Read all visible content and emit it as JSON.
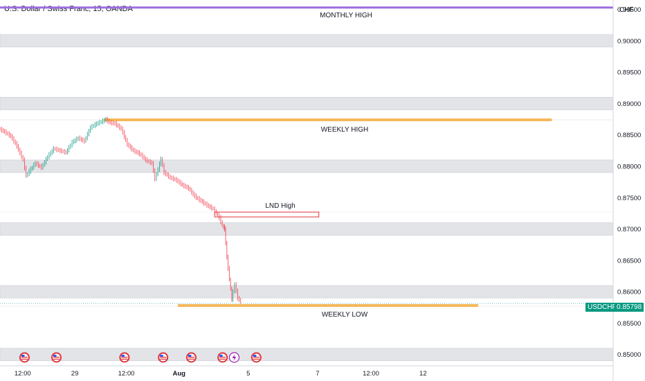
{
  "header": {
    "title": "U.S. Dollar / Swiss Franc, 15, OANDA",
    "currency": "CHF"
  },
  "last_price": {
    "symbol": "USDCHF",
    "value": "0.85798"
  },
  "colors": {
    "monthly_line": "#9c6ce0",
    "weekly_zone": "#f5b85a",
    "lnd_box": "#e0333b",
    "band": "#e3e4e8",
    "up_candle": "#089981",
    "down_candle": "#f23645",
    "last_price": "#089981"
  },
  "chart_data": {
    "type": "line",
    "symbol": "USDCHF",
    "x_tick_labels": [
      "12:00",
      "29",
      "12:00",
      "Aug",
      "5",
      "7",
      "12:00",
      "12"
    ],
    "y_tick_labels": [
      "0.90500",
      "0.90000",
      "0.89500",
      "0.89000",
      "0.88500",
      "0.88000",
      "0.87500",
      "0.87000",
      "0.86500",
      "0.86000",
      "0.85500",
      "0.85000"
    ],
    "ylim": [
      0.8482,
      0.9065
    ],
    "price_path": [
      [
        0.0,
        0.886
      ],
      [
        0.01,
        0.8855
      ],
      [
        0.02,
        0.8848
      ],
      [
        0.03,
        0.8832
      ],
      [
        0.04,
        0.881
      ],
      [
        0.045,
        0.8785
      ],
      [
        0.05,
        0.8792
      ],
      [
        0.06,
        0.8805
      ],
      [
        0.07,
        0.8798
      ],
      [
        0.08,
        0.8815
      ],
      [
        0.09,
        0.8828
      ],
      [
        0.1,
        0.8825
      ],
      [
        0.11,
        0.8822
      ],
      [
        0.12,
        0.8838
      ],
      [
        0.13,
        0.8845
      ],
      [
        0.14,
        0.884
      ],
      [
        0.15,
        0.8862
      ],
      [
        0.16,
        0.8868
      ],
      [
        0.17,
        0.8872
      ],
      [
        0.175,
        0.8875
      ],
      [
        0.18,
        0.887
      ],
      [
        0.19,
        0.8868
      ],
      [
        0.2,
        0.886
      ],
      [
        0.21,
        0.8835
      ],
      [
        0.22,
        0.8825
      ],
      [
        0.23,
        0.882
      ],
      [
        0.24,
        0.881
      ],
      [
        0.25,
        0.8805
      ],
      [
        0.255,
        0.878
      ],
      [
        0.26,
        0.8795
      ],
      [
        0.265,
        0.8812
      ],
      [
        0.27,
        0.879
      ],
      [
        0.28,
        0.8782
      ],
      [
        0.29,
        0.8778
      ],
      [
        0.3,
        0.877
      ],
      [
        0.31,
        0.8765
      ],
      [
        0.32,
        0.8752
      ],
      [
        0.33,
        0.8745
      ],
      [
        0.34,
        0.8738
      ],
      [
        0.35,
        0.8732
      ],
      [
        0.355,
        0.8725
      ],
      [
        0.36,
        0.8718
      ],
      [
        0.365,
        0.8705
      ],
      [
        0.368,
        0.87
      ],
      [
        0.372,
        0.8655
      ],
      [
        0.376,
        0.862
      ],
      [
        0.38,
        0.8588
      ],
      [
        0.385,
        0.8612
      ],
      [
        0.39,
        0.859
      ],
      [
        0.395,
        0.8584
      ]
    ],
    "levels": [
      {
        "label": "MONTHLY HIGH",
        "price": 0.9053
      },
      {
        "label": "WEEKLY HIGH",
        "price": 0.8874,
        "from": 0.17,
        "to": 0.9
      },
      {
        "label": "WEEKLY LOW",
        "price": 0.8578,
        "from": 0.29,
        "to": 0.78
      },
      {
        "label": "LND High",
        "price": 0.8727,
        "from": 0.35,
        "to": 0.52
      }
    ],
    "zones": [
      [
        0.899,
        0.901
      ],
      [
        0.889,
        0.891
      ],
      [
        0.879,
        0.881
      ],
      [
        0.869,
        0.871
      ],
      [
        0.859,
        0.861
      ],
      [
        0.849,
        0.851
      ]
    ],
    "events": [
      {
        "x": 0.04,
        "kind": "us-flag"
      },
      {
        "x": 0.092,
        "kind": "us-flag"
      },
      {
        "x": 0.203,
        "kind": "us-flag"
      },
      {
        "x": 0.266,
        "kind": "us-flag"
      },
      {
        "x": 0.312,
        "kind": "us-flag"
      },
      {
        "x": 0.363,
        "kind": "us-flag"
      },
      {
        "x": 0.382,
        "kind": "lightning"
      },
      {
        "x": 0.418,
        "kind": "us-flag"
      }
    ],
    "grid": false,
    "legend": "none"
  }
}
